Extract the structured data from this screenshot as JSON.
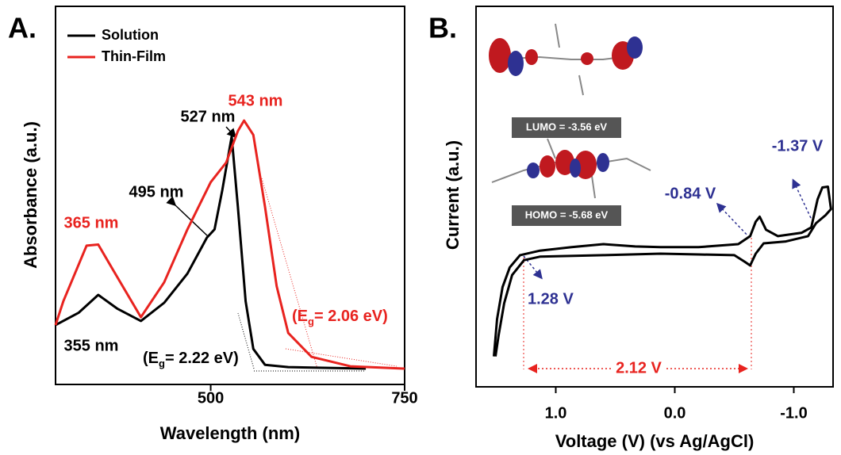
{
  "chart_data": [
    {
      "type": "line",
      "panel": "A.",
      "xlabel": "Wavelength (nm)",
      "ylabel": "Absorbance (a.u.)",
      "xlim": [
        300,
        750
      ],
      "xticks": [
        500,
        750
      ],
      "ylim": [
        0,
        1
      ],
      "series": [
        {
          "name": "Solution",
          "color": "#000000",
          "x": [
            300,
            330,
            355,
            380,
            410,
            440,
            470,
            495,
            505,
            515,
            527,
            535,
            545,
            555,
            570,
            600,
            700
          ],
          "values": [
            0.157,
            0.19,
            0.237,
            0.2,
            0.168,
            0.216,
            0.293,
            0.388,
            0.41,
            0.514,
            0.656,
            0.47,
            0.22,
            0.094,
            0.052,
            0.046,
            0.042
          ]
        },
        {
          "name": "Thin-Film",
          "color": "#e8231f",
          "x": [
            300,
            310,
            340,
            355,
            375,
            410,
            440,
            470,
            500,
            520,
            535,
            543,
            555,
            570,
            585,
            600,
            630,
            680,
            750
          ],
          "values": [
            0.157,
            0.22,
            0.367,
            0.37,
            0.3,
            0.178,
            0.27,
            0.41,
            0.535,
            0.587,
            0.67,
            0.698,
            0.66,
            0.47,
            0.26,
            0.136,
            0.073,
            0.048,
            0.042
          ]
        }
      ],
      "annotations": [
        {
          "text": "527 nm",
          "color": "#000000"
        },
        {
          "text": "543 nm",
          "color": "#e8231f"
        },
        {
          "text": "495 nm",
          "color": "#000000"
        },
        {
          "text": "365 nm",
          "color": "#e8231f"
        },
        {
          "text": "355 nm",
          "color": "#000000"
        },
        {
          "parts": [
            "(E",
            "g",
            "= 2.22 eV)"
          ],
          "color": "#000000"
        },
        {
          "parts": [
            "(E",
            "g",
            "= 2.06 eV)"
          ],
          "color": "#e8231f"
        }
      ]
    },
    {
      "type": "line",
      "panel": "B.",
      "xlabel": "Voltage (V) (vs Ag/AgCl)",
      "ylabel": "Current (a.u.)",
      "xlim": [
        1.67,
        -1.33
      ],
      "xticks": [
        {
          "value": 1,
          "label": "1.0"
        },
        {
          "value": 0,
          "label": "0.0"
        },
        {
          "value": -1,
          "label": "-1.0"
        }
      ],
      "ylim": [
        0,
        1
      ],
      "series": [
        {
          "color": "#000000",
          "x": [
            1.52,
            1.493,
            1.447,
            1.387,
            1.3,
            1.133,
            0.867,
            0.6,
            0.333,
            0.12,
            -0.2,
            -0.533,
            -0.633,
            -0.68,
            -0.713,
            -0.767,
            -0.867,
            -1.067,
            -1.147,
            -1.2,
            -1.24,
            -1.287,
            -1.313,
            -1.267,
            -1.187,
            -1.12,
            -0.933,
            -0.747,
            -0.68,
            -0.633,
            -0.587,
            -0.5,
            -0.2,
            0.12,
            0.6,
            1.133,
            1.267,
            1.367,
            1.433,
            1.48,
            1.507
          ],
          "values": [
            0.08,
            0.178,
            0.262,
            0.314,
            0.346,
            0.358,
            0.367,
            0.375,
            0.369,
            0.367,
            0.367,
            0.375,
            0.396,
            0.434,
            0.447,
            0.413,
            0.396,
            0.405,
            0.419,
            0.493,
            0.524,
            0.526,
            0.467,
            0.451,
            0.43,
            0.396,
            0.382,
            0.377,
            0.35,
            0.319,
            0.329,
            0.346,
            0.348,
            0.35,
            0.346,
            0.342,
            0.333,
            0.294,
            0.22,
            0.136,
            0.08
          ]
        }
      ],
      "annotations": [
        {
          "text": "LUMO = -3.56 eV",
          "color": "#ffffff"
        },
        {
          "text": "HOMO = -5.68 eV",
          "color": "#ffffff"
        },
        {
          "text": "-0.84 V",
          "color": "#2e3192"
        },
        {
          "text": "-1.37 V",
          "color": "#2e3192"
        },
        {
          "text": "1.28 V",
          "color": "#2e3192"
        },
        {
          "text": "2.12 V",
          "color": "#e8231f"
        }
      ]
    }
  ]
}
